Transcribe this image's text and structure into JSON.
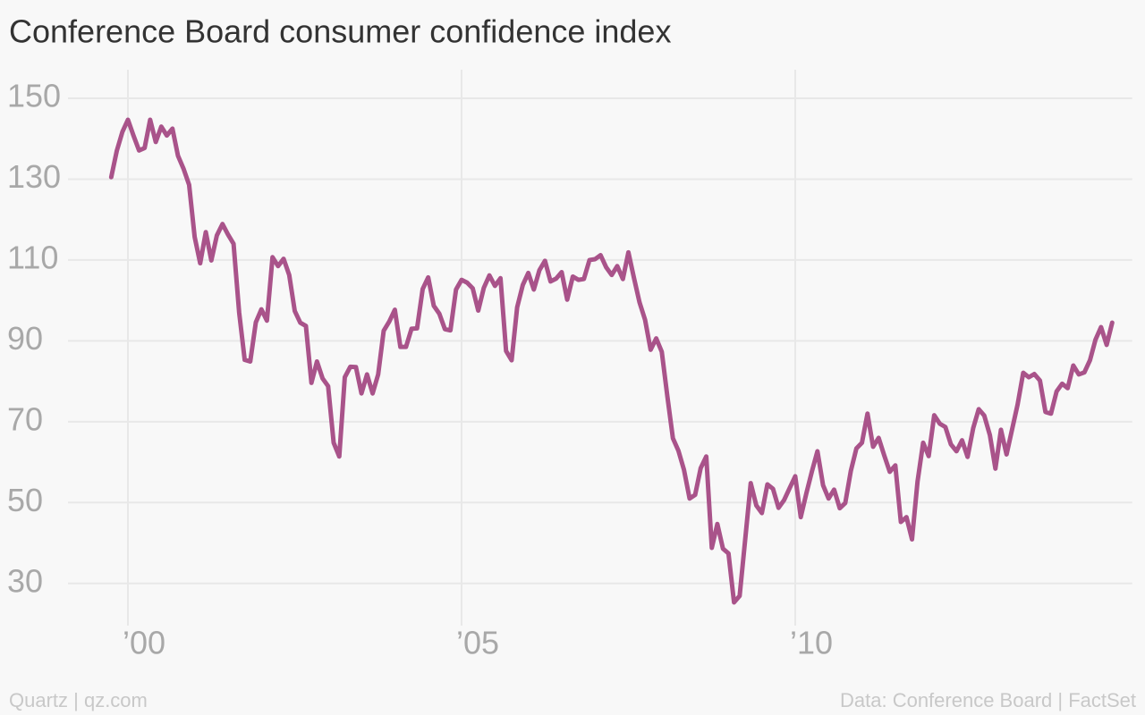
{
  "chart_data": {
    "type": "line",
    "title": "Conference Board consumer confidence index",
    "source": "Data: Conference Board | FactSet",
    "credit": "Quartz | qz.com",
    "grid": true,
    "xlim": [
      1999.15,
      2015.05
    ],
    "xticks": [
      {
        "value": 2000,
        "label": "’00"
      },
      {
        "value": 2005,
        "label": "’05"
      },
      {
        "value": 2010,
        "label": "’10"
      }
    ],
    "ylim": [
      20,
      159
    ],
    "yticks": [
      30,
      50,
      70,
      90,
      110,
      130,
      150
    ],
    "x": [
      1999.75,
      1999.833,
      1999.917,
      2000,
      2000.083,
      2000.167,
      2000.25,
      2000.333,
      2000.417,
      2000.5,
      2000.583,
      2000.667,
      2000.75,
      2000.833,
      2000.917,
      2001,
      2001.083,
      2001.167,
      2001.25,
      2001.333,
      2001.417,
      2001.5,
      2001.583,
      2001.667,
      2001.75,
      2001.833,
      2001.917,
      2002,
      2002.083,
      2002.167,
      2002.25,
      2002.333,
      2002.417,
      2002.5,
      2002.583,
      2002.667,
      2002.75,
      2002.833,
      2002.917,
      2003,
      2003.083,
      2003.167,
      2003.25,
      2003.333,
      2003.417,
      2003.5,
      2003.583,
      2003.667,
      2003.75,
      2003.833,
      2003.917,
      2004,
      2004.083,
      2004.167,
      2004.25,
      2004.333,
      2004.417,
      2004.5,
      2004.583,
      2004.667,
      2004.75,
      2004.833,
      2004.917,
      2005,
      2005.083,
      2005.167,
      2005.25,
      2005.333,
      2005.417,
      2005.5,
      2005.583,
      2005.667,
      2005.75,
      2005.833,
      2005.917,
      2006,
      2006.083,
      2006.167,
      2006.25,
      2006.333,
      2006.417,
      2006.5,
      2006.583,
      2006.667,
      2006.75,
      2006.833,
      2006.917,
      2007,
      2007.083,
      2007.167,
      2007.25,
      2007.333,
      2007.417,
      2007.5,
      2007.583,
      2007.667,
      2007.75,
      2007.833,
      2007.917,
      2008,
      2008.083,
      2008.167,
      2008.25,
      2008.333,
      2008.417,
      2008.5,
      2008.583,
      2008.667,
      2008.75,
      2008.833,
      2008.917,
      2009,
      2009.083,
      2009.167,
      2009.25,
      2009.333,
      2009.417,
      2009.5,
      2009.583,
      2009.667,
      2009.75,
      2009.833,
      2009.917,
      2010,
      2010.083,
      2010.167,
      2010.25,
      2010.333,
      2010.417,
      2010.5,
      2010.583,
      2010.667,
      2010.75,
      2010.833,
      2010.917,
      2011,
      2011.083,
      2011.167,
      2011.25,
      2011.333,
      2011.417,
      2011.5,
      2011.583,
      2011.667,
      2011.75,
      2011.833,
      2011.917,
      2012,
      2012.083,
      2012.167,
      2012.25,
      2012.333,
      2012.417,
      2012.5,
      2012.583,
      2012.667,
      2012.75,
      2012.833,
      2012.917,
      2013,
      2013.083,
      2013.167,
      2013.25,
      2013.333,
      2013.417,
      2013.5,
      2013.583,
      2013.667,
      2013.75,
      2013.833,
      2013.917,
      2014,
      2014.083,
      2014.167,
      2014.25,
      2014.333,
      2014.417,
      2014.5,
      2014.583,
      2014.667,
      2014.75
    ],
    "series": [
      {
        "color": "#a9538a",
        "values": [
          130.5,
          137.0,
          141.7,
          144.7,
          140.8,
          137.1,
          137.7,
          144.7,
          139.2,
          143.0,
          140.8,
          142.5,
          135.8,
          132.6,
          128.6,
          115.7,
          109.2,
          116.9,
          109.9,
          116.1,
          118.9,
          116.3,
          114.0,
          97.0,
          85.3,
          84.9,
          94.6,
          97.8,
          95.0,
          110.7,
          108.5,
          110.3,
          106.3,
          97.4,
          94.5,
          93.7,
          79.6,
          84.9,
          80.7,
          78.8,
          64.8,
          61.4,
          81.0,
          83.6,
          83.5,
          77.0,
          81.7,
          77.0,
          81.7,
          92.5,
          94.8,
          97.7,
          88.5,
          88.5,
          93.0,
          93.1,
          102.8,
          105.7,
          98.7,
          96.7,
          92.9,
          92.6,
          102.7,
          105.1,
          104.4,
          103.0,
          97.5,
          103.1,
          106.2,
          103.6,
          105.5,
          87.5,
          85.2,
          98.3,
          103.8,
          106.8,
          102.7,
          107.5,
          109.8,
          104.7,
          105.4,
          107.0,
          100.2,
          105.9,
          105.1,
          105.3,
          110.0,
          110.2,
          111.2,
          108.2,
          106.3,
          108.5,
          105.3,
          111.9,
          105.6,
          99.5,
          95.2,
          87.8,
          90.6,
          87.3,
          76.4,
          65.9,
          62.8,
          58.1,
          51.0,
          51.9,
          58.5,
          61.4,
          38.8,
          44.7,
          38.6,
          37.4,
          25.3,
          26.9,
          40.8,
          54.8,
          49.3,
          47.4,
          54.5,
          53.4,
          48.7,
          50.6,
          53.6,
          56.5,
          46.4,
          52.3,
          57.7,
          62.7,
          54.3,
          51.0,
          53.2,
          48.6,
          49.9,
          57.8,
          63.4,
          64.8,
          72.0,
          63.8,
          66.0,
          61.7,
          57.6,
          59.2,
          45.2,
          46.4,
          40.9,
          55.2,
          64.8,
          61.5,
          71.6,
          69.5,
          68.7,
          64.4,
          62.7,
          65.4,
          61.3,
          68.4,
          73.1,
          71.5,
          66.7,
          58.4,
          68.0,
          61.9,
          68.1,
          74.3,
          82.1,
          81.0,
          81.8,
          80.2,
          72.4,
          72.0,
          77.5,
          79.4,
          78.3,
          83.9,
          81.7,
          82.2,
          85.2,
          90.3,
          93.4,
          89.0,
          94.5
        ]
      }
    ]
  }
}
